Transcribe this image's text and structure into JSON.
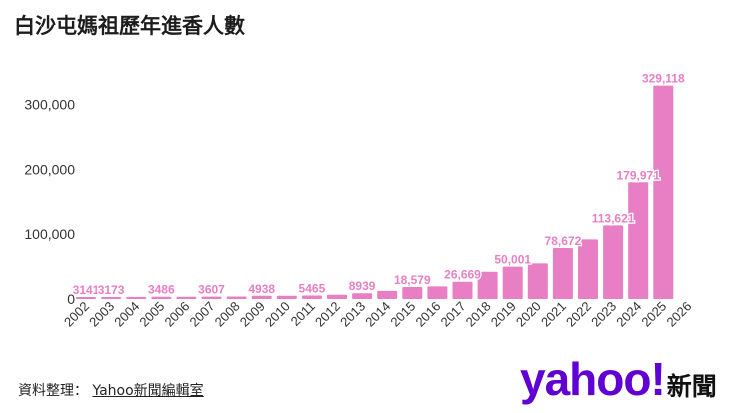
{
  "header": {
    "title": "白沙屯媽祖歷年進香人數"
  },
  "footer": {
    "source_label": "資料整理：",
    "source_name": "Yahoo新聞編輯室",
    "logo_text": "yahoo!",
    "logo_suffix": "新聞"
  },
  "colors": {
    "bar": "#e87fc4",
    "label": "#e87fc4",
    "axis": "#333333",
    "brand": "#6001d2"
  },
  "chart_data": {
    "type": "bar",
    "title": "白沙屯媽祖歷年進香人數",
    "xlabel": "",
    "ylabel": "",
    "ylim": [
      0,
      330000
    ],
    "y_ticks": [
      0,
      100000,
      200000,
      300000
    ],
    "y_tick_labels": [
      "0",
      "100,000",
      "200,000",
      "300,000"
    ],
    "grid": false,
    "categories": [
      "2002",
      "2003",
      "2004",
      "2005",
      "2006",
      "2007",
      "2008",
      "2009",
      "2010",
      "2011",
      "2012",
      "2013",
      "2014",
      "2015",
      "2016",
      "2017",
      "2018",
      "2019",
      "2020",
      "2021",
      "2022",
      "2023",
      "2024",
      "2025",
      "2026"
    ],
    "values": [
      3141,
      3173,
      3200,
      3486,
      3500,
      3607,
      3800,
      4938,
      5000,
      5465,
      6500,
      8939,
      12500,
      18579,
      19500,
      26669,
      42000,
      50001,
      55000,
      78672,
      92000,
      113621,
      179971,
      329118,
      null
    ],
    "data_labels": [
      "3141",
      "3173",
      "",
      "3486",
      "",
      "3607",
      "",
      "4938",
      "",
      "5465",
      "",
      "8939",
      "",
      "18,579",
      "",
      "26,669",
      "",
      "50,001",
      "",
      "78,672",
      "",
      "113,621",
      "179,971",
      "329,118",
      ""
    ]
  }
}
